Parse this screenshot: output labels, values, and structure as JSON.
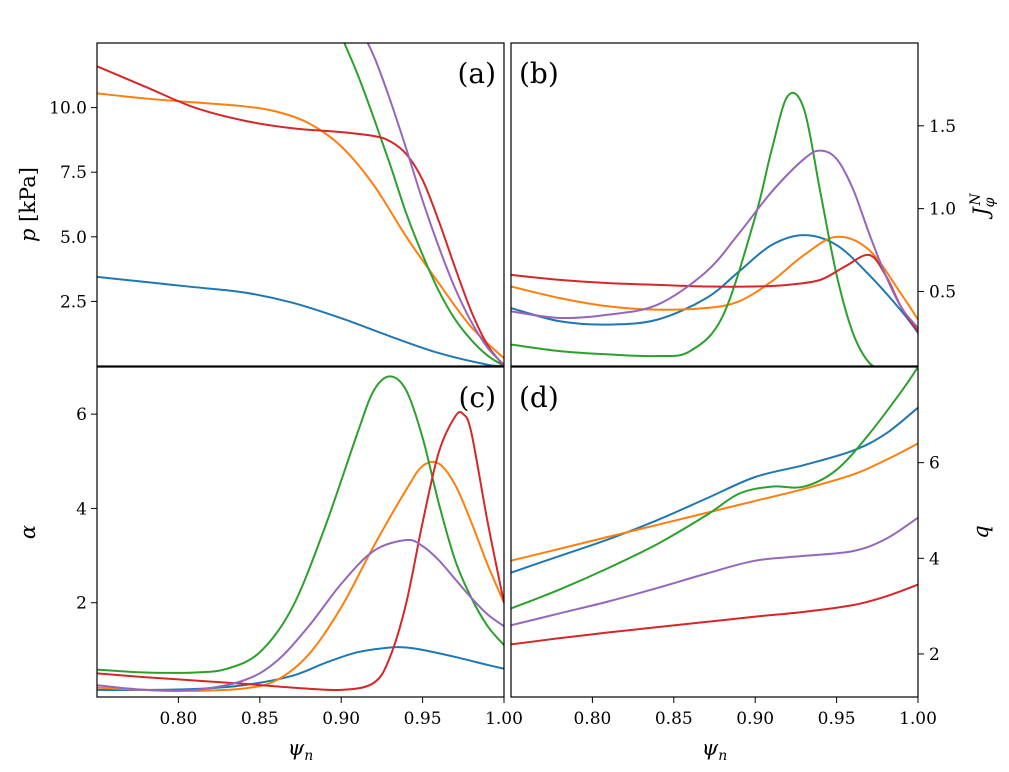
{
  "colors": {
    "blue": "#1f77b4",
    "orange": "#ff7f0e",
    "green": "#2ca02c",
    "red": "#d62728",
    "purple": "#9467bd"
  },
  "chart_data": [
    {
      "type": "line",
      "panel_label": "(a)",
      "xlabel": "",
      "ylabel": "p  [kPa]",
      "xlim": [
        0.75,
        1.0
      ],
      "ylim": [
        0.0,
        12.5
      ],
      "xticks": [],
      "yticks": [
        "2.5",
        "5.0",
        "7.5",
        "10.0"
      ],
      "y_axis_side": "left",
      "series": [
        {
          "color": "blue",
          "x": [
            0.75,
            0.78,
            0.81,
            0.84,
            0.87,
            0.9,
            0.93,
            0.96,
            0.99,
            1.0
          ],
          "y": [
            3.45,
            3.25,
            3.05,
            2.85,
            2.45,
            1.85,
            1.15,
            0.5,
            0.05,
            0.0
          ]
        },
        {
          "color": "orange",
          "x": [
            0.75,
            0.78,
            0.81,
            0.84,
            0.86,
            0.88,
            0.9,
            0.92,
            0.94,
            0.96,
            0.98,
            1.0
          ],
          "y": [
            10.55,
            10.35,
            10.2,
            10.05,
            9.85,
            9.4,
            8.5,
            7.0,
            5.0,
            3.2,
            1.5,
            0.3
          ]
        },
        {
          "color": "green",
          "x": [
            0.89,
            0.9,
            0.91,
            0.92,
            0.93,
            0.94,
            0.95,
            0.96,
            0.97,
            0.98,
            0.99,
            1.0
          ],
          "y": [
            14.5,
            12.8,
            11.3,
            9.6,
            7.8,
            5.9,
            4.3,
            2.9,
            1.8,
            1.0,
            0.4,
            0.0
          ]
        },
        {
          "color": "red",
          "x": [
            0.75,
            0.78,
            0.81,
            0.84,
            0.87,
            0.9,
            0.92,
            0.93,
            0.94,
            0.95,
            0.96,
            0.97,
            0.98,
            0.99,
            1.0
          ],
          "y": [
            11.6,
            10.8,
            10.0,
            9.5,
            9.2,
            9.05,
            8.9,
            8.7,
            8.2,
            7.2,
            5.6,
            3.8,
            2.1,
            0.8,
            0.0
          ]
        },
        {
          "color": "purple",
          "x": [
            0.9,
            0.91,
            0.92,
            0.93,
            0.94,
            0.95,
            0.96,
            0.97,
            0.98,
            0.99,
            1.0
          ],
          "y": [
            14.0,
            13.2,
            12.0,
            10.3,
            8.4,
            6.4,
            4.6,
            3.0,
            1.7,
            0.7,
            0.05
          ]
        }
      ]
    },
    {
      "type": "line",
      "panel_label": "(b)",
      "xlabel": "",
      "ylabel": "J_φ^N",
      "xlim": [
        0.75,
        1.0
      ],
      "ylim": [
        0.05,
        2.0
      ],
      "xticks": [],
      "yticks": [
        "0.5",
        "1.0",
        "1.5"
      ],
      "y_axis_side": "right",
      "series": [
        {
          "color": "blue",
          "x": [
            0.75,
            0.78,
            0.81,
            0.84,
            0.87,
            0.89,
            0.91,
            0.93,
            0.95,
            0.97,
            0.99,
            1.0
          ],
          "y": [
            0.4,
            0.32,
            0.3,
            0.33,
            0.46,
            0.62,
            0.78,
            0.84,
            0.78,
            0.6,
            0.38,
            0.25
          ]
        },
        {
          "color": "orange",
          "x": [
            0.75,
            0.78,
            0.81,
            0.84,
            0.87,
            0.89,
            0.91,
            0.93,
            0.95,
            0.97,
            0.99,
            1.0
          ],
          "y": [
            0.53,
            0.46,
            0.41,
            0.39,
            0.4,
            0.44,
            0.56,
            0.72,
            0.83,
            0.75,
            0.48,
            0.33
          ]
        },
        {
          "color": "green",
          "x": [
            0.75,
            0.78,
            0.81,
            0.84,
            0.86,
            0.88,
            0.9,
            0.91,
            0.92,
            0.93,
            0.94,
            0.95,
            0.96,
            0.97,
            0.98
          ],
          "y": [
            0.18,
            0.14,
            0.12,
            0.11,
            0.14,
            0.35,
            0.95,
            1.35,
            1.68,
            1.6,
            1.1,
            0.6,
            0.25,
            0.07,
            0.02
          ]
        },
        {
          "color": "red",
          "x": [
            0.75,
            0.78,
            0.81,
            0.84,
            0.87,
            0.9,
            0.92,
            0.94,
            0.955,
            0.97,
            0.98,
            0.99,
            1.0
          ],
          "y": [
            0.6,
            0.57,
            0.55,
            0.54,
            0.53,
            0.53,
            0.54,
            0.57,
            0.65,
            0.72,
            0.6,
            0.4,
            0.26
          ]
        },
        {
          "color": "purple",
          "x": [
            0.75,
            0.78,
            0.81,
            0.84,
            0.87,
            0.89,
            0.91,
            0.93,
            0.94,
            0.95,
            0.96,
            0.97,
            0.98,
            0.99,
            1.0
          ],
          "y": [
            0.38,
            0.34,
            0.36,
            0.42,
            0.62,
            0.85,
            1.1,
            1.3,
            1.35,
            1.3,
            1.12,
            0.85,
            0.6,
            0.4,
            0.28
          ]
        }
      ]
    },
    {
      "type": "line",
      "panel_label": "(c)",
      "xlabel": "ψn",
      "ylabel": "α",
      "xlim": [
        0.75,
        1.0
      ],
      "ylim": [
        0.0,
        7.0
      ],
      "xticks": [
        "0.80",
        "0.85",
        "0.90",
        "0.95",
        "1.00"
      ],
      "yticks": [
        "2",
        "4",
        "6"
      ],
      "y_axis_side": "left",
      "series": [
        {
          "color": "blue",
          "x": [
            0.75,
            0.78,
            0.81,
            0.84,
            0.87,
            0.89,
            0.91,
            0.93,
            0.94,
            0.95,
            0.97,
            0.99,
            1.0
          ],
          "y": [
            0.15,
            0.15,
            0.17,
            0.25,
            0.45,
            0.72,
            0.95,
            1.05,
            1.05,
            1.0,
            0.85,
            0.68,
            0.6
          ]
        },
        {
          "color": "orange",
          "x": [
            0.75,
            0.78,
            0.81,
            0.84,
            0.86,
            0.88,
            0.9,
            0.92,
            0.94,
            0.95,
            0.96,
            0.97,
            0.98,
            0.99,
            1.0
          ],
          "y": [
            0.2,
            0.15,
            0.13,
            0.18,
            0.35,
            0.9,
            1.9,
            3.2,
            4.4,
            4.9,
            4.95,
            4.5,
            3.7,
            2.8,
            2.0
          ]
        },
        {
          "color": "green",
          "x": [
            0.75,
            0.78,
            0.81,
            0.83,
            0.85,
            0.87,
            0.89,
            0.91,
            0.92,
            0.93,
            0.94,
            0.95,
            0.96,
            0.97,
            0.98,
            0.99,
            1.0
          ],
          "y": [
            0.58,
            0.52,
            0.52,
            0.6,
            0.95,
            1.9,
            3.6,
            5.6,
            6.5,
            6.8,
            6.5,
            5.5,
            4.1,
            2.9,
            2.1,
            1.5,
            1.1
          ]
        },
        {
          "color": "red",
          "x": [
            0.75,
            0.78,
            0.81,
            0.84,
            0.87,
            0.9,
            0.92,
            0.93,
            0.94,
            0.95,
            0.96,
            0.97,
            0.975,
            0.98,
            0.99,
            1.0
          ],
          "y": [
            0.5,
            0.42,
            0.35,
            0.28,
            0.2,
            0.15,
            0.3,
            0.85,
            2.0,
            3.7,
            5.2,
            5.95,
            6.0,
            5.6,
            3.7,
            2.0
          ]
        },
        {
          "color": "purple",
          "x": [
            0.75,
            0.78,
            0.81,
            0.84,
            0.86,
            0.88,
            0.9,
            0.92,
            0.94,
            0.95,
            0.96,
            0.97,
            0.98,
            0.99,
            1.0
          ],
          "y": [
            0.25,
            0.15,
            0.15,
            0.35,
            0.75,
            1.5,
            2.4,
            3.1,
            3.33,
            3.2,
            2.9,
            2.5,
            2.1,
            1.75,
            1.5
          ]
        }
      ]
    },
    {
      "type": "line",
      "panel_label": "(d)",
      "xlabel": "ψn",
      "ylabel": "q",
      "xlim": [
        0.75,
        1.0
      ],
      "ylim": [
        1.1,
        8.0
      ],
      "xticks": [
        "0.80",
        "0.85",
        "0.90",
        "0.95",
        "1.00"
      ],
      "yticks": [
        "2",
        "4",
        "6"
      ],
      "y_axis_side": "right",
      "series": [
        {
          "color": "blue",
          "x": [
            0.75,
            0.78,
            0.81,
            0.84,
            0.87,
            0.9,
            0.93,
            0.96,
            0.98,
            1.0
          ],
          "y": [
            3.7,
            4.05,
            4.4,
            4.8,
            5.25,
            5.7,
            5.95,
            6.25,
            6.6,
            7.15
          ]
        },
        {
          "color": "orange",
          "x": [
            0.75,
            0.78,
            0.81,
            0.84,
            0.87,
            0.9,
            0.93,
            0.96,
            0.98,
            1.0
          ],
          "y": [
            3.95,
            4.2,
            4.45,
            4.7,
            4.95,
            5.2,
            5.45,
            5.75,
            6.05,
            6.4
          ]
        },
        {
          "color": "green",
          "x": [
            0.75,
            0.78,
            0.81,
            0.84,
            0.87,
            0.89,
            0.91,
            0.93,
            0.95,
            0.97,
            0.99,
            1.0
          ],
          "y": [
            2.95,
            3.35,
            3.8,
            4.3,
            4.9,
            5.35,
            5.5,
            5.5,
            5.85,
            6.6,
            7.5,
            8.0
          ]
        },
        {
          "color": "red",
          "x": [
            0.75,
            0.78,
            0.81,
            0.84,
            0.87,
            0.9,
            0.93,
            0.96,
            0.98,
            1.0
          ],
          "y": [
            2.2,
            2.33,
            2.45,
            2.56,
            2.67,
            2.78,
            2.88,
            3.02,
            3.2,
            3.45
          ]
        },
        {
          "color": "purple",
          "x": [
            0.75,
            0.78,
            0.81,
            0.84,
            0.87,
            0.9,
            0.93,
            0.96,
            0.98,
            1.0
          ],
          "y": [
            2.6,
            2.85,
            3.1,
            3.38,
            3.68,
            3.95,
            4.05,
            4.15,
            4.4,
            4.85
          ]
        }
      ]
    }
  ]
}
